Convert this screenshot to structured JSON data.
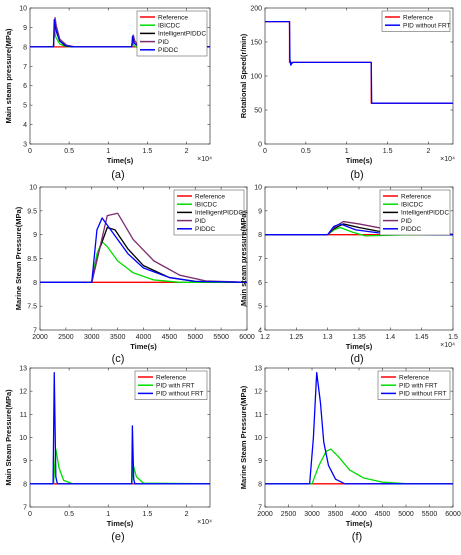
{
  "chart_data": [
    {
      "type": "line",
      "caption": "(a)",
      "xlabel": "Time(s)",
      "ylabel": "Main steam pressure(MPa)",
      "xlim": [
        0,
        23000
      ],
      "ylim": [
        3,
        10
      ],
      "xticks": [
        0,
        5000,
        10000,
        15000,
        20000
      ],
      "xtick_labels": [
        "0",
        "0.5",
        "1",
        "1.5",
        "2"
      ],
      "x_multiplier": "×10⁴",
      "yticks": [
        3,
        4,
        5,
        6,
        7,
        8,
        9,
        10
      ],
      "legend_pos": "top-right",
      "series": [
        {
          "name": "Reference",
          "color": "#ff0000",
          "x": [
            0,
            23000
          ],
          "y": [
            8,
            8
          ]
        },
        {
          "name": "IBICDC",
          "color": "#00dd00",
          "x": [
            0,
            3000,
            3100,
            3300,
            3800,
            4500,
            5500,
            13000,
            13100,
            13200,
            13600,
            14500,
            23000
          ],
          "y": [
            8,
            8,
            8.9,
            8.5,
            8.15,
            8.02,
            8,
            8,
            8.3,
            8.1,
            7.98,
            8,
            8
          ]
        },
        {
          "name": "IntelligentPIDDC",
          "color": "#000000",
          "x": [
            0,
            3000,
            3150,
            3350,
            3800,
            4500,
            5500,
            13000,
            13150,
            13300,
            13800,
            15000,
            23000
          ],
          "y": [
            8,
            8,
            9.2,
            8.8,
            8.3,
            8.05,
            8,
            8,
            8.5,
            8.2,
            8.03,
            8,
            8
          ]
        },
        {
          "name": "PID",
          "color": "#7b2d6e",
          "x": [
            0,
            3000,
            3200,
            3350,
            3800,
            4700,
            5800,
            13000,
            13200,
            13400,
            13900,
            15000,
            23000
          ],
          "y": [
            8,
            8,
            9.5,
            9.1,
            8.4,
            8.08,
            8,
            8,
            8.6,
            8.3,
            8.05,
            8,
            8
          ]
        },
        {
          "name": "PIDDC",
          "color": "#0000ff",
          "x": [
            0,
            3000,
            3100,
            3300,
            3800,
            4600,
            5600,
            13000,
            13100,
            13300,
            13800,
            15000,
            23000
          ],
          "y": [
            8,
            8,
            9.4,
            8.9,
            8.3,
            8.05,
            8,
            8,
            8.55,
            8.2,
            8.03,
            8,
            8
          ]
        }
      ]
    },
    {
      "type": "line",
      "caption": "(b)",
      "xlabel": "Time(s)",
      "ylabel": "Rotational Speed(r/min)",
      "xlim": [
        0,
        23000
      ],
      "ylim": [
        0,
        200
      ],
      "xticks": [
        0,
        5000,
        10000,
        15000,
        20000
      ],
      "xtick_labels": [
        "0",
        "0.5",
        "1",
        "1.5",
        "2"
      ],
      "x_multiplier": "×10⁴",
      "yticks": [
        0,
        50,
        100,
        150,
        200
      ],
      "legend_pos": "top-right",
      "series": [
        {
          "name": "Reference",
          "color": "#ff0000",
          "x": [
            0,
            3000,
            3000,
            13000,
            13000,
            23000
          ],
          "y": [
            180,
            180,
            120,
            120,
            60,
            60
          ]
        },
        {
          "name": "PID without FRT",
          "color": "#0000ff",
          "x": [
            0,
            3000,
            3050,
            3150,
            3300,
            3500,
            13000,
            13050,
            23000
          ],
          "y": [
            180,
            180,
            125,
            116,
            119,
            120,
            120,
            60,
            60
          ]
        }
      ]
    },
    {
      "type": "line",
      "caption": "(c)",
      "xlabel": "Time(s)",
      "ylabel": "Marine Steam Pressure(MPa)",
      "xlim": [
        2000,
        6000
      ],
      "ylim": [
        7,
        10
      ],
      "xticks": [
        2000,
        2500,
        3000,
        3500,
        4000,
        4500,
        5000,
        5500,
        6000
      ],
      "xtick_labels": [
        "2000",
        "2500",
        "3000",
        "3500",
        "4000",
        "4500",
        "5000",
        "5500",
        "6000"
      ],
      "yticks": [
        7,
        7.5,
        8,
        8.5,
        9,
        9.5,
        10
      ],
      "legend_pos": "top-right",
      "series": [
        {
          "name": "Reference",
          "color": "#ff0000",
          "x": [
            2000,
            6000
          ],
          "y": [
            8,
            8
          ]
        },
        {
          "name": "IBICDC",
          "color": "#00dd00",
          "x": [
            2000,
            3000,
            3100,
            3200,
            3300,
            3500,
            3800,
            4200,
            4700,
            6000
          ],
          "y": [
            8,
            8,
            8.6,
            8.85,
            8.75,
            8.45,
            8.2,
            8.05,
            8,
            8
          ]
        },
        {
          "name": "IntelligentPIDDC",
          "color": "#000000",
          "x": [
            2000,
            3000,
            3150,
            3300,
            3450,
            3700,
            4000,
            4500,
            5000,
            6000
          ],
          "y": [
            8,
            8,
            8.7,
            9.15,
            9.1,
            8.7,
            8.35,
            8.1,
            8.02,
            8
          ]
        },
        {
          "name": "PID",
          "color": "#7b2d6e",
          "x": [
            2000,
            3000,
            3150,
            3300,
            3500,
            3800,
            4200,
            4700,
            5200,
            6000
          ],
          "y": [
            8,
            8,
            8.7,
            9.4,
            9.45,
            8.9,
            8.45,
            8.15,
            8.03,
            8
          ]
        },
        {
          "name": "PIDDC",
          "color": "#0000ff",
          "x": [
            2000,
            3000,
            3100,
            3200,
            3400,
            3700,
            4000,
            4500,
            5000,
            6000
          ],
          "y": [
            8,
            8,
            9.1,
            9.35,
            9.05,
            8.6,
            8.3,
            8.1,
            8.02,
            8
          ]
        }
      ]
    },
    {
      "type": "line",
      "caption": "(d)",
      "xlabel": "Time(s)",
      "ylabel": "Main steam pressure(MPa)",
      "xlim": [
        12000,
        15000
      ],
      "ylim": [
        4,
        10
      ],
      "xticks": [
        12000,
        12500,
        13000,
        13500,
        14000,
        14500,
        15000
      ],
      "xtick_labels": [
        "1.2",
        "1.25",
        "1.3",
        "1.35",
        "1.4",
        "1.45",
        "1.5"
      ],
      "x_multiplier": "×10⁴",
      "yticks": [
        4,
        5,
        6,
        7,
        8,
        9,
        10
      ],
      "legend_pos": "top-right",
      "series": [
        {
          "name": "Reference",
          "color": "#ff0000",
          "x": [
            12000,
            15000
          ],
          "y": [
            8,
            8
          ]
        },
        {
          "name": "IBICDC",
          "color": "#00dd00",
          "x": [
            12000,
            13000,
            13100,
            13200,
            13400,
            13600,
            13900,
            14300,
            15000
          ],
          "y": [
            8,
            8,
            8.2,
            8.3,
            8.1,
            7.95,
            7.97,
            8,
            8
          ]
        },
        {
          "name": "IntelligentPIDDC",
          "color": "#000000",
          "x": [
            12000,
            13000,
            13100,
            13250,
            13500,
            13800,
            14200,
            14700,
            15000
          ],
          "y": [
            8,
            8,
            8.25,
            8.45,
            8.3,
            8.15,
            8.05,
            8.01,
            8
          ]
        },
        {
          "name": "PID",
          "color": "#7b2d6e",
          "x": [
            12000,
            13000,
            13100,
            13250,
            13500,
            13900,
            14300,
            14800,
            15000
          ],
          "y": [
            8,
            8,
            8.3,
            8.55,
            8.45,
            8.25,
            8.12,
            8.04,
            8.02
          ]
        },
        {
          "name": "PIDDC",
          "color": "#0000ff",
          "x": [
            12000,
            13000,
            13100,
            13200,
            13450,
            13800,
            14200,
            14700,
            15000
          ],
          "y": [
            8,
            8,
            8.35,
            8.45,
            8.2,
            8.08,
            8.03,
            8,
            8
          ]
        }
      ]
    },
    {
      "type": "line",
      "caption": "(e)",
      "xlabel": "Time(s)",
      "ylabel": "Main Steam Pressure(MPa)",
      "xlim": [
        0,
        23000
      ],
      "ylim": [
        7,
        13
      ],
      "xticks": [
        0,
        5000,
        10000,
        15000,
        20000
      ],
      "xtick_labels": [
        "0",
        "0.5",
        "1",
        "1.5",
        "2"
      ],
      "x_multiplier": "×10⁴",
      "yticks": [
        7,
        8,
        9,
        10,
        11,
        12,
        13
      ],
      "legend_pos": "top-right",
      "series": [
        {
          "name": "Reference",
          "color": "#ff0000",
          "x": [
            0,
            23000
          ],
          "y": [
            8,
            8
          ]
        },
        {
          "name": "PID with FRT",
          "color": "#00dd00",
          "x": [
            0,
            3000,
            3300,
            3700,
            4300,
            5500,
            13000,
            13200,
            13600,
            14500,
            23000
          ],
          "y": [
            8,
            8,
            9.5,
            8.7,
            8.15,
            8,
            8,
            8.8,
            8.3,
            8.03,
            8
          ]
        },
        {
          "name": "PID without FRT",
          "color": "#0000ff",
          "x": [
            0,
            2950,
            3100,
            3300,
            3500,
            13000,
            13080,
            13250,
            13400,
            23000
          ],
          "y": [
            8,
            8,
            12.8,
            8.3,
            8,
            8,
            10.5,
            8.2,
            8,
            8
          ]
        }
      ]
    },
    {
      "type": "line",
      "caption": "(f)",
      "xlabel": "Time(s)",
      "ylabel": "Marine Steam Pressure(MPa)",
      "xlim": [
        2000,
        6000
      ],
      "ylim": [
        7,
        13
      ],
      "xticks": [
        2000,
        2500,
        3000,
        3500,
        4000,
        4500,
        5000,
        5500,
        6000
      ],
      "xtick_labels": [
        "2000",
        "2500",
        "3000",
        "3500",
        "4000",
        "4500",
        "5000",
        "5500",
        "6000"
      ],
      "yticks": [
        7,
        8,
        9,
        10,
        11,
        12,
        13
      ],
      "legend_pos": "top-right",
      "series": [
        {
          "name": "Reference",
          "color": "#ff0000",
          "x": [
            2000,
            6000
          ],
          "y": [
            8,
            8
          ]
        },
        {
          "name": "PID with FRT",
          "color": "#00dd00",
          "x": [
            2000,
            3000,
            3150,
            3300,
            3400,
            3550,
            3800,
            4100,
            4500,
            5000,
            6000
          ],
          "y": [
            8,
            8,
            8.8,
            9.4,
            9.5,
            9.2,
            8.6,
            8.25,
            8.07,
            8.01,
            8
          ]
        },
        {
          "name": "PID without FRT",
          "color": "#0000ff",
          "x": [
            2000,
            2950,
            3030,
            3100,
            3180,
            3250,
            3350,
            3500,
            3700,
            6000
          ],
          "y": [
            8,
            8,
            10,
            12.8,
            11.5,
            9.8,
            8.8,
            8.2,
            8,
            8
          ]
        }
      ]
    }
  ]
}
